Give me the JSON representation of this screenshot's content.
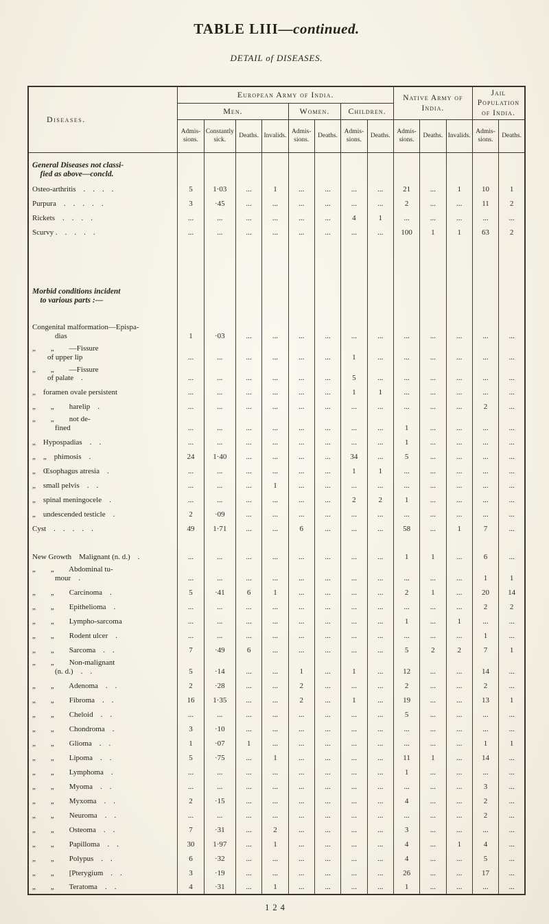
{
  "page": {
    "title": "TABLE LIII",
    "title_suffix": "—continued.",
    "subtitle": "DETAIL of DISEASES.",
    "page_number": "124"
  },
  "table": {
    "corner_header": "Diseases.",
    "groups": {
      "european": "European Army of India.",
      "men": "Men.",
      "women": "Women.",
      "children": "Children.",
      "native": "Native Army of India.",
      "jail": "Jail Population of India."
    },
    "column_headers": [
      "Admis-\nsions.",
      "Constantly\nsick.",
      "Deaths.",
      "Invalids.",
      "Admis-\nsions.",
      "Deaths.",
      "Admis-\nsions.",
      "Deaths.",
      "Admis-\nsions.",
      "Deaths.",
      "Invalids.",
      "Admis-\nsions.",
      "Deaths."
    ],
    "rows": [
      {
        "type": "section",
        "label": "General Diseases not classi-\n    fied as above—concld."
      },
      {
        "type": "data",
        "label": "Osteo-arthritis    .    .    .    .",
        "values": [
          "5",
          "1·03",
          "...",
          "1",
          "...",
          "...",
          "...",
          "...",
          "21",
          "...",
          "1",
          "10",
          "1"
        ]
      },
      {
        "type": "data",
        "label": "Purpura    .    .    .    .    .",
        "values": [
          "3",
          "·45",
          "...",
          "...",
          "...",
          "...",
          "...",
          "...",
          "2",
          "...",
          "...",
          "11",
          "2"
        ]
      },
      {
        "type": "data",
        "label": "Rickets    .    .    .    .",
        "values": [
          "...",
          "...",
          "...",
          "...",
          "...",
          "...",
          "4",
          "1",
          "...",
          "...",
          "...",
          "...",
          "..."
        ]
      },
      {
        "type": "data",
        "label": "Scurvy .    .    .    .    .",
        "values": [
          "...",
          "...",
          "...",
          "...",
          "...",
          "...",
          "...",
          "...",
          "100",
          "1",
          "1",
          "63",
          "2"
        ]
      },
      {
        "type": "spacer"
      },
      {
        "type": "section",
        "label": "Morbid conditions incident\n    to various parts :—"
      },
      {
        "type": "spacer",
        "size": "sm"
      },
      {
        "type": "data",
        "label": "Congenital malformation—Epispa-\n            dias",
        "values": [
          "1",
          "·03",
          "...",
          "...",
          "...",
          "...",
          "...",
          "...",
          "...",
          "...",
          "...",
          "...",
          "..."
        ]
      },
      {
        "type": "data",
        "label": "„        „        —Fissure\n        of upper lip",
        "values": [
          "...",
          "...",
          "...",
          "...",
          "...",
          "...",
          "1",
          "...",
          "...",
          "...",
          "...",
          "...",
          "..."
        ]
      },
      {
        "type": "data",
        "label": "„        „        —Fissure\n        of palate    .",
        "values": [
          "...",
          "...",
          "...",
          "...",
          "...",
          "...",
          "5",
          "...",
          "...",
          "...",
          "...",
          "...",
          "..."
        ]
      },
      {
        "type": "data",
        "label": "„    foramen ovale persistent",
        "values": [
          "...",
          "...",
          "...",
          "...",
          "...",
          "...",
          "1",
          "1",
          "...",
          "...",
          "...",
          "...",
          "..."
        ]
      },
      {
        "type": "data",
        "label": "„        „        harelip    .",
        "values": [
          "...",
          "...",
          "...",
          "...",
          "...",
          "...",
          "...",
          "...",
          "...",
          "...",
          "...",
          "2",
          "..."
        ]
      },
      {
        "type": "data",
        "label": "„        „        not de-\n            fined",
        "values": [
          "...",
          "...",
          "...",
          "...",
          "...",
          "...",
          "...",
          "...",
          "1",
          "...",
          "...",
          "...",
          "..."
        ]
      },
      {
        "type": "data",
        "label": "„    Hypospadias    .    .",
        "values": [
          "...",
          "...",
          "...",
          "...",
          "...",
          "...",
          "...",
          "...",
          "1",
          "...",
          "...",
          "...",
          "..."
        ]
      },
      {
        "type": "data",
        "label": "„    „    phimosis    .",
        "values": [
          "24",
          "1·40",
          "...",
          "...",
          "...",
          "...",
          "34",
          "...",
          "5",
          "...",
          "...",
          "...",
          "..."
        ]
      },
      {
        "type": "data",
        "label": "„    Œsophagus atresia    .",
        "values": [
          "...",
          "...",
          "...",
          "...",
          "...",
          "...",
          "1",
          "1",
          "...",
          "...",
          "...",
          "...",
          "..."
        ]
      },
      {
        "type": "data",
        "label": "„    small pelvis    .    .",
        "values": [
          "...",
          "...",
          "...",
          "1",
          "...",
          "...",
          "...",
          "...",
          "...",
          "...",
          "...",
          "...",
          "..."
        ]
      },
      {
        "type": "data",
        "label": "„    spinal meningocele    .",
        "values": [
          "...",
          "...",
          "...",
          "...",
          "...",
          "...",
          "2",
          "2",
          "1",
          "...",
          "...",
          "...",
          "..."
        ]
      },
      {
        "type": "data",
        "label": "„    undescended testicle    .",
        "values": [
          "2",
          "·09",
          "...",
          "...",
          "...",
          "...",
          "...",
          "...",
          "...",
          "...",
          "...",
          "...",
          "..."
        ]
      },
      {
        "type": "data",
        "label": "Cyst    .    .    .    .    .",
        "values": [
          "49",
          "1·71",
          "...",
          "...",
          "6",
          "...",
          "...",
          "...",
          "58",
          "...",
          "1",
          "7",
          "..."
        ]
      },
      {
        "type": "spacer",
        "size": "sm"
      },
      {
        "type": "data",
        "label": "New Growth    Malignant (n. d.)    .",
        "values": [
          "...",
          "...",
          "...",
          "...",
          "...",
          "...",
          "...",
          "...",
          "1",
          "1",
          "...",
          "6",
          "..."
        ]
      },
      {
        "type": "data",
        "label": "„        „        Abdominal tu-\n            mour    .",
        "values": [
          "...",
          "...",
          "...",
          "...",
          "...",
          "...",
          "...",
          "...",
          "...",
          "...",
          "...",
          "1",
          "1"
        ]
      },
      {
        "type": "data",
        "label": "„        „        Carcinoma    .",
        "values": [
          "5",
          "·41",
          "6",
          "1",
          "...",
          "...",
          "...",
          "...",
          "2",
          "1",
          "...",
          "20",
          "14"
        ]
      },
      {
        "type": "data",
        "label": "„        „        Epithelioma    .",
        "values": [
          "...",
          "...",
          "...",
          "...",
          "...",
          "...",
          "...",
          "...",
          "...",
          "...",
          "...",
          "2",
          "2"
        ]
      },
      {
        "type": "data",
        "label": "„        „        Lympho-sarcoma",
        "values": [
          "...",
          "...",
          "...",
          "...",
          "...",
          "...",
          "...",
          "...",
          "1",
          "...",
          "1",
          "...",
          "..."
        ]
      },
      {
        "type": "data",
        "label": "„        „        Rodent ulcer    .",
        "values": [
          "...",
          "...",
          "...",
          "...",
          "...",
          "...",
          "...",
          "...",
          "...",
          "...",
          "...",
          "1",
          "..."
        ]
      },
      {
        "type": "data",
        "label": "„        „        Sarcoma    .    .",
        "values": [
          "7",
          "·49",
          "6",
          "...",
          "...",
          "...",
          "...",
          "...",
          "5",
          "2",
          "2",
          "7",
          "1"
        ]
      },
      {
        "type": "data",
        "label": "„        „        Non-malignant\n            (n. d.)    .    .",
        "values": [
          "5",
          "·14",
          "...",
          "...",
          "1",
          "...",
          "1",
          "...",
          "12",
          "...",
          "...",
          "14",
          "..."
        ]
      },
      {
        "type": "data",
        "label": "„        „        Adenoma    .    .",
        "values": [
          "2",
          "·28",
          "...",
          "...",
          "2",
          "...",
          "...",
          "...",
          "2",
          "...",
          "...",
          "2",
          "..."
        ]
      },
      {
        "type": "data",
        "label": "„        „        Fibroma    .    .",
        "values": [
          "16",
          "1·35",
          "...",
          "...",
          "2",
          "...",
          "1",
          "...",
          "19",
          "...",
          "...",
          "13",
          "1"
        ]
      },
      {
        "type": "data",
        "label": "„        „        Cheloid    .    .",
        "values": [
          "...",
          "...",
          "...",
          "...",
          "...",
          "...",
          "...",
          "...",
          "5",
          "...",
          "...",
          "...",
          "..."
        ]
      },
      {
        "type": "data",
        "label": "„        „        Chondroma    .",
        "values": [
          "3",
          "·10",
          "...",
          "...",
          "...",
          "...",
          "...",
          "...",
          "...",
          "...",
          "...",
          "...",
          "..."
        ]
      },
      {
        "type": "data",
        "label": "„        „        Glioma    .    .",
        "values": [
          "1",
          "·07",
          "1",
          "...",
          "...",
          "...",
          "...",
          "...",
          "...",
          "...",
          "...",
          "1",
          "1"
        ]
      },
      {
        "type": "data",
        "label": "„        „        Lipoma    .    .",
        "values": [
          "5",
          "·75",
          "...",
          "1",
          "...",
          "...",
          "...",
          "...",
          "11",
          "1",
          "...",
          "14",
          "..."
        ]
      },
      {
        "type": "data",
        "label": "„        „        Lymphoma    .",
        "values": [
          "...",
          "...",
          "...",
          "...",
          "...",
          "...",
          "...",
          "...",
          "1",
          "...",
          "...",
          "...",
          "..."
        ]
      },
      {
        "type": "data",
        "label": "„        „        Myoma    .    .",
        "values": [
          "...",
          "...",
          "...",
          "...",
          "...",
          "...",
          "...",
          "...",
          "...",
          "...",
          "...",
          "3",
          "..."
        ]
      },
      {
        "type": "data",
        "label": "„        „        Myxoma    .    .",
        "values": [
          "2",
          "·15",
          "...",
          "...",
          "...",
          "...",
          "...",
          "...",
          "4",
          "...",
          "...",
          "2",
          "..."
        ]
      },
      {
        "type": "data",
        "label": "„        „        Neuroma    .    .",
        "values": [
          "...",
          "...",
          "...",
          "...",
          "...",
          "...",
          "...",
          "...",
          "...",
          "...",
          "...",
          "2",
          "..."
        ]
      },
      {
        "type": "data",
        "label": "„        „        Osteoma    .    .",
        "values": [
          "7",
          "·31",
          "...",
          "2",
          "...",
          "...",
          "...",
          "...",
          "3",
          "...",
          "...",
          "...",
          "..."
        ]
      },
      {
        "type": "data",
        "label": "„        „        Papilloma    .    .",
        "values": [
          "30",
          "1·97",
          "...",
          "1",
          "...",
          "...",
          "...",
          "...",
          "4",
          "...",
          "1",
          "4",
          "..."
        ]
      },
      {
        "type": "data",
        "label": "„        „        Polypus    .    .",
        "values": [
          "6",
          "·32",
          "...",
          "...",
          "...",
          "...",
          "...",
          "...",
          "4",
          "...",
          "...",
          "5",
          "..."
        ]
      },
      {
        "type": "data",
        "label": "„        „        [Pterygium    .    .",
        "values": [
          "3",
          "·19",
          "...",
          "...",
          "...",
          "...",
          "...",
          "...",
          "26",
          "...",
          "...",
          "17",
          "..."
        ]
      },
      {
        "type": "data",
        "label": "„        „        Teratoma    .    .",
        "values": [
          "4",
          "·31",
          "...",
          "1",
          "...",
          "...",
          "...",
          "...",
          "1",
          "...",
          "...",
          "...",
          "..."
        ]
      }
    ]
  }
}
